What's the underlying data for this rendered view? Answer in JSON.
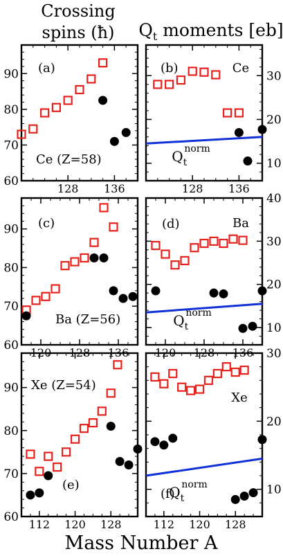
{
  "header": {
    "left_title_line1": "Crossing",
    "left_title_line2": "spins (ħ)",
    "right_title_main": "Q",
    "right_title_sub": "t",
    "right_title_rest": " moments [eb]"
  },
  "footer": {
    "xlabel": "Mass Number A"
  },
  "colors": {
    "open_square": "#e8201c",
    "filled_circle": "#000000",
    "q_norm_line": "#1030d8",
    "frame": "#000000"
  },
  "markers": {
    "open_square": "red open squares",
    "filled_circle": "black filled circles",
    "q_norm_line": "blue line"
  },
  "chart_data": [
    {
      "id": "a",
      "type": "scatter",
      "panel_label": "(a)",
      "annotation": "Ce (Z=58)",
      "xlim": [
        120,
        140
      ],
      "ylim": [
        60,
        98
      ],
      "yticks": [
        60,
        70,
        80,
        90
      ],
      "xticks": [
        128,
        136
      ],
      "series": [
        {
          "marker": "open_square",
          "points": [
            [
              120,
              73
            ],
            [
              122,
              74.5
            ],
            [
              124,
              79
            ],
            [
              126,
              80.5
            ],
            [
              128,
              82.5
            ],
            [
              130,
              85.5
            ],
            [
              132,
              88.5
            ],
            [
              134,
              93
            ]
          ]
        },
        {
          "marker": "filled_circle",
          "points": [
            [
              134,
              82.5
            ],
            [
              136,
              71
            ],
            [
              138,
              73.5
            ]
          ]
        }
      ]
    },
    {
      "id": "b",
      "type": "scatter",
      "panel_label": "(b)",
      "annotation": "Ce",
      "line_label_main": "Q",
      "line_label_sub": "t",
      "line_label_sup": "norm",
      "xlim": [
        120,
        140
      ],
      "ylim": [
        6,
        37
      ],
      "yticks": [
        10,
        20,
        30
      ],
      "xticks": [
        128,
        136
      ],
      "series": [
        {
          "marker": "open_square",
          "points": [
            [
              122,
              28
            ],
            [
              124,
              28
            ],
            [
              126,
              29
            ],
            [
              128,
              31
            ],
            [
              130,
              30.8
            ],
            [
              132,
              30.2
            ],
            [
              134,
              21.5
            ],
            [
              136,
              21.5
            ]
          ]
        },
        {
          "marker": "filled_circle",
          "points": [
            [
              136,
              17
            ],
            [
              137.5,
              10.5
            ],
            [
              140,
              17.7
            ]
          ]
        },
        {
          "marker": "q_norm_line",
          "points": [
            [
              120,
              14.5
            ],
            [
              140,
              16
            ]
          ]
        }
      ]
    },
    {
      "id": "c",
      "type": "scatter",
      "panel_label": "(c)",
      "annotation": "Ba (Z=56)",
      "xlim": [
        116,
        140
      ],
      "ylim": [
        60,
        98
      ],
      "yticks": [
        60,
        70,
        80,
        90
      ],
      "xticks": [
        120,
        128,
        136
      ],
      "series": [
        {
          "marker": "open_square",
          "points": [
            [
              117,
              69
            ],
            [
              119,
              71.5
            ],
            [
              121,
              72.5
            ],
            [
              123,
              74.5
            ],
            [
              125,
              80.5
            ],
            [
              127,
              81.5
            ],
            [
              129,
              82.5
            ],
            [
              131,
              86.5
            ],
            [
              133,
              95.5
            ],
            [
              135,
              90.5
            ]
          ]
        },
        {
          "marker": "filled_circle",
          "points": [
            [
              117,
              67.5
            ],
            [
              131,
              82.5
            ],
            [
              133,
              82.5
            ],
            [
              135,
              74
            ],
            [
              137,
              72
            ],
            [
              139,
              72.5
            ]
          ]
        }
      ]
    },
    {
      "id": "d",
      "type": "scatter",
      "panel_label": "(d)",
      "annotation": "Ba",
      "line_label_main": "Q",
      "line_label_sub": "t",
      "line_label_sup": "norm",
      "xlim": [
        116,
        140
      ],
      "ylim": [
        6,
        40
      ],
      "yticks": [
        10,
        20,
        30,
        40
      ],
      "xticks": [
        120,
        128,
        136
      ],
      "series": [
        {
          "marker": "open_square",
          "points": [
            [
              118,
              29
            ],
            [
              120,
              27
            ],
            [
              122,
              24.5
            ],
            [
              124,
              25.5
            ],
            [
              126,
              28.5
            ],
            [
              128,
              29.5
            ],
            [
              130,
              30
            ],
            [
              132,
              29.5
            ],
            [
              134,
              30.5
            ],
            [
              136,
              30.2
            ]
          ]
        },
        {
          "marker": "filled_circle",
          "points": [
            [
              118,
              18.5
            ],
            [
              130,
              18
            ],
            [
              132,
              17.8
            ],
            [
              136,
              9.8
            ],
            [
              138,
              10.3
            ],
            [
              140,
              18.5
            ]
          ]
        },
        {
          "marker": "q_norm_line",
          "points": [
            [
              116,
              13.5
            ],
            [
              140,
              15.5
            ]
          ]
        }
      ]
    },
    {
      "id": "e",
      "type": "scatter",
      "panel_label": "(e)",
      "annotation": "Xe (Z=54)",
      "xlim": [
        108,
        134
      ],
      "ylim": [
        60,
        98
      ],
      "yticks": [
        60,
        70,
        80,
        90
      ],
      "xticks": [
        112,
        120,
        128
      ],
      "series": [
        {
          "marker": "open_square",
          "points": [
            [
              110,
              74.5
            ],
            [
              112,
              70.5
            ],
            [
              114,
              74
            ],
            [
              116,
              71.5
            ],
            [
              118,
              75
            ],
            [
              120,
              78
            ],
            [
              122,
              80.5
            ],
            [
              124,
              81.8
            ],
            [
              126,
              84.5
            ],
            [
              128,
              88.7
            ],
            [
              129.5,
              95.3
            ]
          ]
        },
        {
          "marker": "filled_circle",
          "points": [
            [
              110,
              65
            ],
            [
              112,
              65.5
            ],
            [
              114,
              69.5
            ],
            [
              128,
              81
            ],
            [
              130,
              72.8
            ],
            [
              132,
              72
            ],
            [
              134,
              75.7
            ]
          ]
        }
      ]
    },
    {
      "id": "f",
      "type": "scatter",
      "panel_label": "(f)",
      "annotation": "Xe",
      "line_label_main": "Q",
      "line_label_sub": "t",
      "line_label_sup": "norm",
      "xlim": [
        108,
        134
      ],
      "ylim": [
        6,
        30
      ],
      "yticks": [
        10,
        20,
        30
      ],
      "xticks": [
        112,
        120,
        128
      ],
      "series": [
        {
          "marker": "open_square",
          "points": [
            [
              110,
              26.5
            ],
            [
              112,
              25.5
            ],
            [
              114,
              27
            ],
            [
              116,
              25
            ],
            [
              118,
              24.5
            ],
            [
              120,
              24.7
            ],
            [
              122,
              26
            ],
            [
              124,
              27
            ],
            [
              126,
              28
            ],
            [
              128,
              27.2
            ],
            [
              130,
              27.5
            ]
          ]
        },
        {
          "marker": "filled_circle",
          "points": [
            [
              110,
              17
            ],
            [
              112,
              16.5
            ],
            [
              114,
              17.5
            ],
            [
              128,
              8.5
            ],
            [
              130,
              9
            ],
            [
              132,
              9.5
            ],
            [
              134,
              17.3
            ]
          ]
        },
        {
          "marker": "q_norm_line",
          "points": [
            [
              108,
              12
            ],
            [
              134,
              14.5
            ]
          ]
        }
      ]
    }
  ]
}
